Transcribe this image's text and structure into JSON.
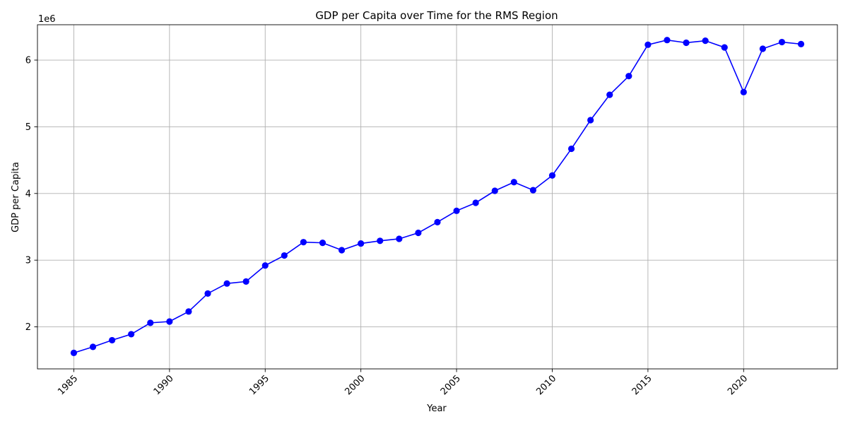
{
  "chart_data": {
    "type": "line",
    "title": "GDP per Capita over Time for the RMS Region",
    "xlabel": "Year",
    "ylabel": "GDP per Capita",
    "y_offset_label": "1e6",
    "xlim": [
      1983.1,
      2024.9
    ],
    "ylim": [
      1.37,
      6.53
    ],
    "y_scale_factor": 1000000,
    "x_ticks": [
      1985,
      1990,
      1995,
      2000,
      2005,
      2010,
      2015,
      2020
    ],
    "y_ticks": [
      2,
      3,
      4,
      5,
      6
    ],
    "grid": true,
    "series": [
      {
        "color": "#0000ff",
        "marker": "circle",
        "x": [
          1985,
          1986,
          1987,
          1988,
          1989,
          1990,
          1991,
          1992,
          1993,
          1994,
          1995,
          1996,
          1997,
          1998,
          1999,
          2000,
          2001,
          2002,
          2003,
          2004,
          2005,
          2006,
          2007,
          2008,
          2009,
          2010,
          2011,
          2012,
          2013,
          2014,
          2015,
          2016,
          2017,
          2018,
          2019,
          2020,
          2021,
          2022,
          2023
        ],
        "y": [
          1.61,
          1.7,
          1.8,
          1.89,
          2.06,
          2.08,
          2.23,
          2.5,
          2.65,
          2.68,
          2.92,
          3.07,
          3.27,
          3.26,
          3.15,
          3.25,
          3.29,
          3.32,
          3.41,
          3.57,
          3.74,
          3.86,
          4.04,
          4.17,
          4.05,
          4.27,
          4.67,
          5.1,
          5.48,
          5.76,
          6.23,
          6.3,
          6.26,
          6.29,
          6.19,
          5.52,
          6.17,
          6.27,
          6.24
        ]
      }
    ]
  }
}
